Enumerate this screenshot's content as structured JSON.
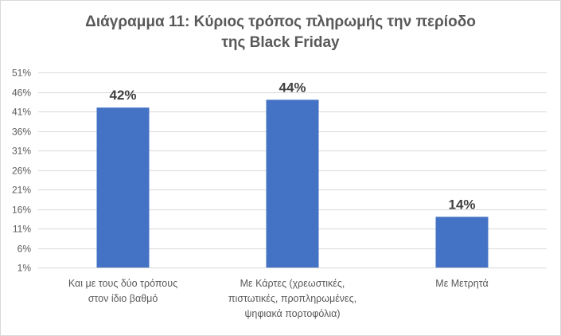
{
  "chart_data": {
    "type": "bar",
    "title_lines": [
      "Διάγραμμα 11: Κύριος τρόπος πληρωμής την περίοδο",
      "της Black Friday"
    ],
    "categories": [
      [
        "Και με τους δύο τρόπους",
        "στον ίδιο βαθμό"
      ],
      [
        "Με Κάρτες (χρεωστικές,",
        "πιστωτικές, προπληρωμένες,",
        "ψηφιακά πορτοφόλια)"
      ],
      [
        "Με Μετρητά"
      ]
    ],
    "values": [
      42,
      44,
      14
    ],
    "data_labels": [
      "42%",
      "44%",
      "14%"
    ],
    "yticks": [
      1,
      6,
      11,
      16,
      21,
      26,
      31,
      36,
      41,
      46,
      51
    ],
    "ytick_labels": [
      "1%",
      "6%",
      "11%",
      "16%",
      "21%",
      "26%",
      "31%",
      "36%",
      "41%",
      "46%",
      "51%"
    ],
    "ylim": [
      1,
      51
    ],
    "color": "#4472c4",
    "grid": true,
    "legend": "none"
  }
}
